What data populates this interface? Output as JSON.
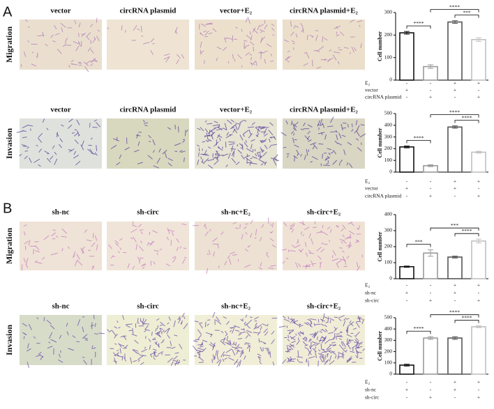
{
  "panel_labels": [
    "A",
    "B"
  ],
  "rows": [
    {
      "label": "Migration",
      "image_titles": [
        "vector",
        "circRNA plasmid",
        "vector+E₂",
        "circRNA plasmid+E₂"
      ]
    },
    {
      "label": "Invasion",
      "image_titles": [
        "vector",
        "circRNA plasmid",
        "vector+E₂",
        "circRNA plasmid+E₂"
      ]
    },
    {
      "label": "Migration",
      "image_titles": [
        "sh-nc",
        "sh-circ",
        "sh-nc+E₂",
        "sh-circ+E₂"
      ]
    },
    {
      "label": "Invasion",
      "image_titles": [
        "sh-nc",
        "sh-circ",
        "sh-nc+E₂",
        "sh-circ+E₂"
      ]
    }
  ],
  "chart_data": [
    {
      "type": "bar",
      "y_label": "Cell number",
      "categories": [
        null,
        null,
        null,
        null
      ],
      "values": [
        210,
        60,
        258,
        180
      ],
      "errors": [
        6,
        8,
        6,
        8
      ],
      "colors": [
        "#111111",
        "#9a9a9a",
        "#555555",
        "#c0c0c0"
      ],
      "ylim": [
        0,
        300
      ],
      "yticks": [
        0,
        100,
        200,
        300
      ],
      "significance": [
        {
          "from": 0,
          "to": 1,
          "label": "****"
        },
        {
          "from": 1,
          "to": 3,
          "label": "****"
        },
        {
          "from": 2,
          "to": 3,
          "label": "***"
        }
      ],
      "conditions": [
        {
          "name": "E₂",
          "marks": [
            "-",
            "-",
            "+",
            "+"
          ]
        },
        {
          "name": "vector",
          "marks": [
            "+",
            "-",
            "+",
            "-"
          ]
        },
        {
          "name": "circRNA plasmid",
          "marks": [
            "-",
            "+",
            "-",
            "+"
          ]
        }
      ]
    },
    {
      "type": "bar",
      "y_label": "Cell number",
      "categories": [
        null,
        null,
        null,
        null
      ],
      "values": [
        215,
        55,
        385,
        170
      ],
      "errors": [
        8,
        8,
        10,
        8
      ],
      "colors": [
        "#111111",
        "#9a9a9a",
        "#555555",
        "#c0c0c0"
      ],
      "ylim": [
        0,
        500
      ],
      "yticks": [
        0,
        100,
        200,
        300,
        400,
        500
      ],
      "significance": [
        {
          "from": 0,
          "to": 1,
          "label": "****"
        },
        {
          "from": 1,
          "to": 3,
          "label": "****"
        },
        {
          "from": 2,
          "to": 3,
          "label": "****"
        }
      ],
      "conditions": [
        {
          "name": "E₂",
          "marks": [
            "-",
            "-",
            "+",
            "+"
          ]
        },
        {
          "name": "vector",
          "marks": [
            "+",
            "-",
            "+",
            "-"
          ]
        },
        {
          "name": "circRNA plasmid",
          "marks": [
            "-",
            "+",
            "-",
            "+"
          ]
        }
      ]
    },
    {
      "type": "bar",
      "y_label": "Cell number",
      "categories": [
        null,
        null,
        null,
        null
      ],
      "values": [
        75,
        160,
        135,
        235
      ],
      "errors": [
        4,
        20,
        6,
        12
      ],
      "colors": [
        "#111111",
        "#9a9a9a",
        "#555555",
        "#c0c0c0"
      ],
      "ylim": [
        0,
        400
      ],
      "yticks": [
        0,
        100,
        200,
        300,
        400
      ],
      "significance": [
        {
          "from": 0,
          "to": 1,
          "label": "***"
        },
        {
          "from": 1,
          "to": 3,
          "label": "***"
        },
        {
          "from": 2,
          "to": 3,
          "label": "****"
        }
      ],
      "conditions": [
        {
          "name": "E₂",
          "marks": [
            "-",
            "-",
            "+",
            "+"
          ]
        },
        {
          "name": "sh-nc",
          "marks": [
            "+",
            "-",
            "+",
            "-"
          ]
        },
        {
          "name": "sh-circ",
          "marks": [
            "-",
            "+",
            "-",
            "+"
          ]
        }
      ]
    },
    {
      "type": "bar",
      "y_label": "Cell number",
      "categories": [
        null,
        null,
        null,
        null
      ],
      "values": [
        80,
        320,
        320,
        420
      ],
      "errors": [
        8,
        12,
        12,
        8
      ],
      "colors": [
        "#111111",
        "#9a9a9a",
        "#555555",
        "#c0c0c0"
      ],
      "ylim": [
        0,
        500
      ],
      "yticks": [
        0,
        100,
        200,
        300,
        400,
        500
      ],
      "significance": [
        {
          "from": 0,
          "to": 1,
          "label": "****"
        },
        {
          "from": 1,
          "to": 3,
          "label": "****"
        },
        {
          "from": 2,
          "to": 3,
          "label": "****"
        }
      ],
      "conditions": [
        {
          "name": "E₂",
          "marks": [
            "-",
            "-",
            "+",
            "+"
          ]
        },
        {
          "name": "sh-nc",
          "marks": [
            "+",
            "-",
            "+",
            "-"
          ]
        },
        {
          "name": "sh-circ",
          "marks": [
            "-",
            "+",
            "-",
            "+"
          ]
        }
      ]
    }
  ]
}
